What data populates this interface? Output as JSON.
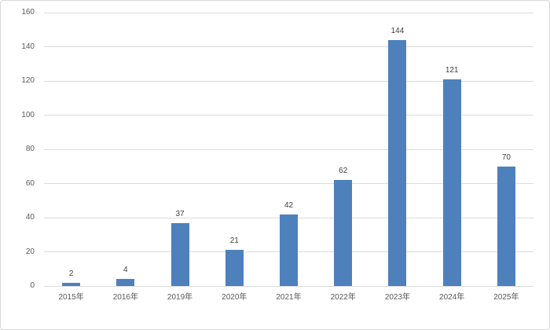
{
  "chart_data": {
    "type": "bar",
    "categories": [
      "2015年",
      "2016年",
      "2019年",
      "2020年",
      "2021年",
      "2022年",
      "2023年",
      "2024年",
      "2025年"
    ],
    "values": [
      2,
      4,
      37,
      21,
      42,
      62,
      144,
      121,
      70
    ],
    "title": "",
    "xlabel": "",
    "ylabel": "",
    "ylim": [
      0,
      160
    ],
    "y_ticks": [
      0,
      20,
      40,
      60,
      80,
      100,
      120,
      140,
      160
    ],
    "grid": "horizontal",
    "legend": "none",
    "data_labels": true,
    "series_name": ""
  },
  "style": {
    "bar_color": "#4e80bc",
    "gridline_color": "#dcdcdc",
    "axis_label_color": "#595959",
    "data_label_color": "#404040",
    "frame_border_color": "#d9d9d9",
    "background_color": "#ffffff"
  }
}
